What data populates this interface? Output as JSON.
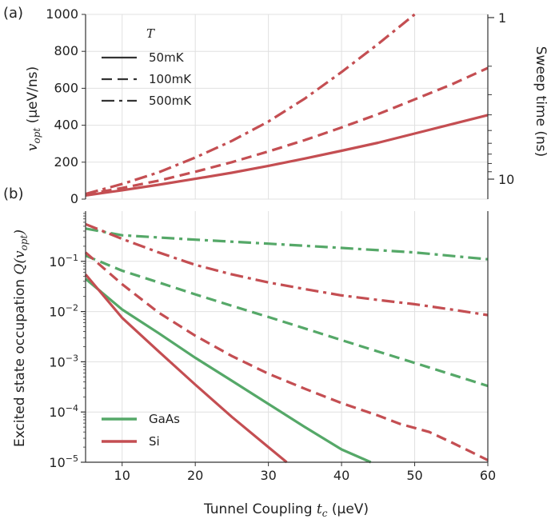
{
  "colors": {
    "GaAs": "#55a868",
    "Si": "#c44e52",
    "grid": "#e0e0e0",
    "axis": "#333333"
  },
  "labels": {
    "panel_a": "(a)",
    "panel_b": "(b)",
    "top_ylabel_sym": "v",
    "top_ylabel_sub": "opt",
    "top_ylabel_unit": " (μeV/ns)",
    "right_ylabel": "Sweep time (ns)",
    "bottom_ylabel_text": "Excited state occupation ",
    "bottom_ylabel_Q": "Q",
    "bottom_ylabel_arg": "(v",
    "bottom_ylabel_sub": "opt",
    "bottom_ylabel_close": ")",
    "xlabel_text": "Tunnel Coupling ",
    "xlabel_sym": "t",
    "xlabel_sub": "c",
    "xlabel_unit": " (μeV)"
  },
  "legend_T": {
    "title": "T",
    "items": [
      {
        "label": "50mK",
        "style": "solid"
      },
      {
        "label": "100mK",
        "style": "dashed"
      },
      {
        "label": "500mK",
        "style": "dashdot"
      }
    ]
  },
  "legend_material": {
    "items": [
      {
        "label": "GaAs",
        "color": "#55a868"
      },
      {
        "label": "Si",
        "color": "#c44e52"
      }
    ]
  },
  "chart_data": [
    {
      "type": "line",
      "panel": "a",
      "xlim": [
        5,
        60
      ],
      "ylim": [
        0,
        1000
      ],
      "xticks": [
        10,
        20,
        30,
        40,
        50,
        60
      ],
      "yticks": [
        0,
        200,
        400,
        600,
        800,
        1000
      ],
      "right_axis": {
        "label": "Sweep time (ns)",
        "ticks": [
          "1",
          "10"
        ]
      },
      "series": [
        {
          "name": "50mK",
          "material": "Si",
          "style": "solid",
          "x": [
            5,
            10,
            15,
            20,
            25,
            30,
            35,
            40,
            45,
            50,
            55,
            60
          ],
          "y": [
            20,
            48,
            78,
            110,
            143,
            180,
            220,
            262,
            305,
            355,
            405,
            455
          ]
        },
        {
          "name": "100mK",
          "material": "Si",
          "style": "dashed",
          "x": [
            5,
            10,
            15,
            20,
            25,
            30,
            35,
            40,
            45,
            50,
            55,
            60
          ],
          "y": [
            25,
            60,
            100,
            148,
            200,
            258,
            320,
            388,
            460,
            540,
            620,
            710
          ]
        },
        {
          "name": "500mK",
          "material": "Si",
          "style": "dashdot",
          "x": [
            5,
            10,
            15,
            20,
            25,
            30,
            35,
            40,
            45,
            50
          ],
          "y": [
            28,
            82,
            145,
            225,
            315,
            420,
            545,
            688,
            840,
            1000
          ]
        }
      ]
    },
    {
      "type": "line",
      "panel": "b",
      "yscale": "log",
      "xlim": [
        5,
        60
      ],
      "ylim": [
        1e-05,
        1
      ],
      "xticks": [
        10,
        20,
        30,
        40,
        50,
        60
      ],
      "xlabel": "Tunnel Coupling t_c (μeV)",
      "ylabel": "Excited state occupation Q(v_opt)",
      "yticks": [
        {
          "exp": -5
        },
        {
          "exp": -4
        },
        {
          "exp": -3
        },
        {
          "exp": -2
        },
        {
          "exp": -1
        }
      ],
      "series": [
        {
          "name": "GaAs",
          "temp": "50mK",
          "style": "solid",
          "x": [
            5,
            10,
            15,
            20,
            25,
            30,
            35,
            40,
            44
          ],
          "y": [
            0.045,
            0.011,
            0.0037,
            0.0012,
            0.00042,
            0.000145,
            5e-05,
            1.8e-05,
            1e-05
          ]
        },
        {
          "name": "GaAs",
          "temp": "100mK",
          "style": "dashed",
          "x": [
            5,
            10,
            15,
            20,
            25,
            30,
            35,
            40,
            45,
            50,
            55,
            60
          ],
          "y": [
            0.13,
            0.065,
            0.038,
            0.022,
            0.013,
            0.0078,
            0.0046,
            0.0027,
            0.0016,
            0.00095,
            0.00056,
            0.00033
          ]
        },
        {
          "name": "GaAs",
          "temp": "500mK",
          "style": "dashdot",
          "x": [
            5,
            10,
            20,
            30,
            40,
            50,
            60
          ],
          "y": [
            0.45,
            0.33,
            0.27,
            0.225,
            0.185,
            0.15,
            0.11
          ]
        },
        {
          "name": "Si",
          "temp": "50mK",
          "style": "solid",
          "x": [
            5,
            10,
            15,
            20,
            25,
            30,
            32.5
          ],
          "y": [
            0.055,
            0.0075,
            0.0016,
            0.00035,
            8e-05,
            2e-05,
            1e-05
          ]
        },
        {
          "name": "Si",
          "temp": "100mK",
          "style": "dashed",
          "x": [
            5,
            10,
            15,
            20,
            25,
            30,
            35,
            40,
            45,
            48,
            52,
            55,
            60
          ],
          "y": [
            0.15,
            0.035,
            0.0095,
            0.0033,
            0.0013,
            0.00058,
            0.00029,
            0.00015,
            8.5e-05,
            5.8e-05,
            4e-05,
            2.5e-05,
            1.1e-05
          ]
        },
        {
          "name": "Si",
          "temp": "500mK",
          "style": "dashdot",
          "x": [
            5,
            10,
            15,
            20,
            25,
            30,
            35,
            40,
            45,
            50,
            55,
            60
          ],
          "y": [
            0.55,
            0.28,
            0.15,
            0.085,
            0.055,
            0.038,
            0.028,
            0.021,
            0.017,
            0.014,
            0.011,
            0.0085
          ]
        }
      ]
    }
  ]
}
